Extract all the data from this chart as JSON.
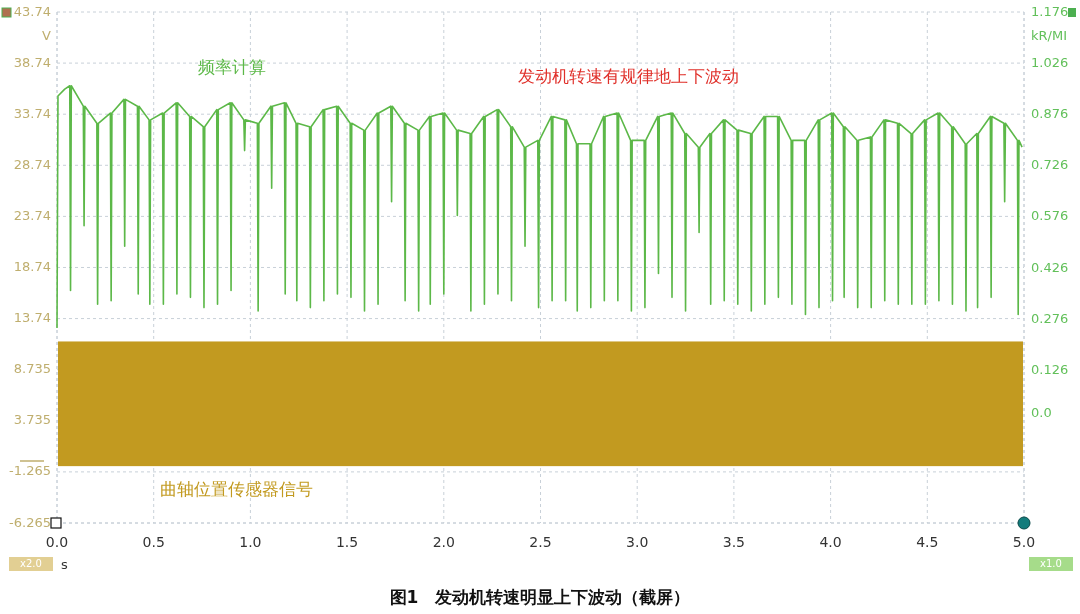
{
  "chart_data": {
    "type": "line",
    "xlabel": "s",
    "ylabel": "V",
    "y2label": "kR/MI",
    "xlim": [
      0,
      5
    ],
    "xticks": [
      {
        "value": 0,
        "label": "0.0"
      },
      0.5,
      {
        "value": 1,
        "label": "1.0"
      },
      1.5,
      {
        "value": 2,
        "label": "2.0"
      },
      2.5,
      {
        "value": 3,
        "label": "3.0"
      },
      3.5,
      {
        "value": 4,
        "label": "4.0"
      },
      4.5,
      {
        "value": 5,
        "label": "5.0"
      }
    ],
    "ylim": [
      -6.265,
      43.74
    ],
    "yticks": [
      43.74,
      38.74,
      33.74,
      28.74,
      23.74,
      18.74,
      13.74,
      8.735,
      3.735,
      -1.265,
      -6.265
    ],
    "y2lim": [
      -0.321,
      1.176
    ],
    "y2ticks": [
      1.176,
      1.026,
      0.876,
      0.726,
      0.576,
      0.426,
      0.276,
      0.126,
      {
        "value": 0,
        "label": "0.0"
      }
    ],
    "grid": true,
    "bands": [
      {
        "axis": "y",
        "from": -0.7,
        "to": 11.5,
        "label": "曲轴位置传感器信号",
        "color": "#c29a20"
      }
    ],
    "series": [
      {
        "name": "频率计算",
        "axis": "y2",
        "color": "#5cb848",
        "x": [
          0,
          0.005,
          0.04,
          0.066,
          0.07,
          0.074,
          0.136,
          0.14,
          0.144,
          0.206,
          0.21,
          0.214,
          0.276,
          0.28,
          0.284,
          0.346,
          0.35,
          0.354,
          0.416,
          0.42,
          0.424,
          0.476,
          0.48,
          0.484,
          0.546,
          0.55,
          0.554,
          0.616,
          0.62,
          0.624,
          0.686,
          0.69,
          0.694,
          0.756,
          0.76,
          0.764,
          0.826,
          0.83,
          0.834,
          0.896,
          0.9,
          0.904,
          0.966,
          0.97,
          0.974,
          1.036,
          1.04,
          1.044,
          1.106,
          1.11,
          1.114,
          1.176,
          1.18,
          1.184,
          1.236,
          1.24,
          1.244,
          1.306,
          1.31,
          1.314,
          1.376,
          1.38,
          1.384,
          1.446,
          1.45,
          1.454,
          1.516,
          1.52,
          1.524,
          1.586,
          1.59,
          1.594,
          1.656,
          1.66,
          1.664,
          1.726,
          1.73,
          1.734,
          1.796,
          1.8,
          1.804,
          1.866,
          1.87,
          1.874,
          1.926,
          1.93,
          1.934,
          1.996,
          2.0,
          2.004,
          2.066,
          2.07,
          2.074,
          2.136,
          2.14,
          2.144,
          2.206,
          2.21,
          2.214,
          2.276,
          2.28,
          2.284,
          2.346,
          2.35,
          2.354,
          2.416,
          2.42,
          2.424,
          2.486,
          2.49,
          2.494,
          2.556,
          2.56,
          2.564,
          2.626,
          2.63,
          2.634,
          2.686,
          2.69,
          2.694,
          2.756,
          2.76,
          2.764,
          2.826,
          2.83,
          2.834,
          2.896,
          2.9,
          2.904,
          2.966,
          2.97,
          2.974,
          3.036,
          3.04,
          3.044,
          3.106,
          3.11,
          3.114,
          3.176,
          3.18,
          3.184,
          3.246,
          3.25,
          3.254,
          3.316,
          3.32,
          3.324,
          3.376,
          3.38,
          3.384,
          3.446,
          3.45,
          3.454,
          3.516,
          3.52,
          3.524,
          3.586,
          3.59,
          3.594,
          3.656,
          3.66,
          3.664,
          3.726,
          3.73,
          3.734,
          3.796,
          3.8,
          3.804,
          3.866,
          3.87,
          3.874,
          3.936,
          3.94,
          3.944,
          4.006,
          4.01,
          4.014,
          4.066,
          4.07,
          4.074,
          4.136,
          4.14,
          4.144,
          4.206,
          4.21,
          4.214,
          4.276,
          4.28,
          4.284,
          4.346,
          4.35,
          4.354,
          4.416,
          4.42,
          4.424,
          4.486,
          4.49,
          4.494,
          4.556,
          4.56,
          4.564,
          4.626,
          4.63,
          4.634,
          4.696,
          4.7,
          4.704,
          4.756,
          4.76,
          4.764,
          4.826,
          4.83,
          4.834,
          4.896,
          4.9,
          4.904,
          4.966,
          4.97,
          4.974,
          4.99
        ],
        "values": [
          0.25,
          0.93,
          0.95,
          0.96,
          0.36,
          0.96,
          0.9,
          0.55,
          0.9,
          0.85,
          0.32,
          0.85,
          0.88,
          0.33,
          0.88,
          0.92,
          0.49,
          0.92,
          0.9,
          0.35,
          0.9,
          0.86,
          0.32,
          0.86,
          0.88,
          0.32,
          0.88,
          0.91,
          0.35,
          0.91,
          0.87,
          0.34,
          0.87,
          0.84,
          0.31,
          0.84,
          0.89,
          0.32,
          0.89,
          0.91,
          0.36,
          0.91,
          0.86,
          0.77,
          0.86,
          0.85,
          0.3,
          0.85,
          0.9,
          0.66,
          0.9,
          0.91,
          0.35,
          0.91,
          0.85,
          0.33,
          0.85,
          0.84,
          0.31,
          0.84,
          0.89,
          0.33,
          0.89,
          0.9,
          0.35,
          0.9,
          0.85,
          0.34,
          0.85,
          0.83,
          0.3,
          0.83,
          0.88,
          0.32,
          0.88,
          0.9,
          0.62,
          0.9,
          0.85,
          0.33,
          0.85,
          0.83,
          0.3,
          0.83,
          0.87,
          0.32,
          0.87,
          0.88,
          0.35,
          0.88,
          0.83,
          0.58,
          0.83,
          0.82,
          0.3,
          0.82,
          0.87,
          0.32,
          0.87,
          0.89,
          0.35,
          0.89,
          0.84,
          0.33,
          0.84,
          0.78,
          0.49,
          0.78,
          0.8,
          0.31,
          0.8,
          0.87,
          0.33,
          0.87,
          0.86,
          0.33,
          0.86,
          0.79,
          0.3,
          0.79,
          0.79,
          0.31,
          0.79,
          0.87,
          0.33,
          0.87,
          0.88,
          0.33,
          0.88,
          0.8,
          0.3,
          0.8,
          0.8,
          0.31,
          0.8,
          0.87,
          0.41,
          0.87,
          0.88,
          0.34,
          0.88,
          0.82,
          0.3,
          0.82,
          0.78,
          0.53,
          0.78,
          0.82,
          0.32,
          0.82,
          0.86,
          0.33,
          0.86,
          0.83,
          0.32,
          0.83,
          0.82,
          0.3,
          0.82,
          0.87,
          0.32,
          0.87,
          0.87,
          0.34,
          0.87,
          0.8,
          0.32,
          0.8,
          0.8,
          0.29,
          0.8,
          0.86,
          0.31,
          0.86,
          0.88,
          0.33,
          0.88,
          0.84,
          0.34,
          0.84,
          0.8,
          0.31,
          0.8,
          0.81,
          0.31,
          0.81,
          0.86,
          0.33,
          0.86,
          0.85,
          0.32,
          0.85,
          0.82,
          0.32,
          0.82,
          0.86,
          0.32,
          0.86,
          0.88,
          0.33,
          0.88,
          0.84,
          0.32,
          0.84,
          0.79,
          0.3,
          0.79,
          0.82,
          0.31,
          0.82,
          0.87,
          0.34,
          0.87,
          0.85,
          0.62,
          0.85,
          0.8,
          0.29,
          0.8,
          0.78
        ]
      }
    ],
    "annotations": [
      "发动机转速有规律地上下波动",
      "x2.0",
      "x1.0",
      "图1　发动机转速明显上下波动（截屏）"
    ]
  }
}
